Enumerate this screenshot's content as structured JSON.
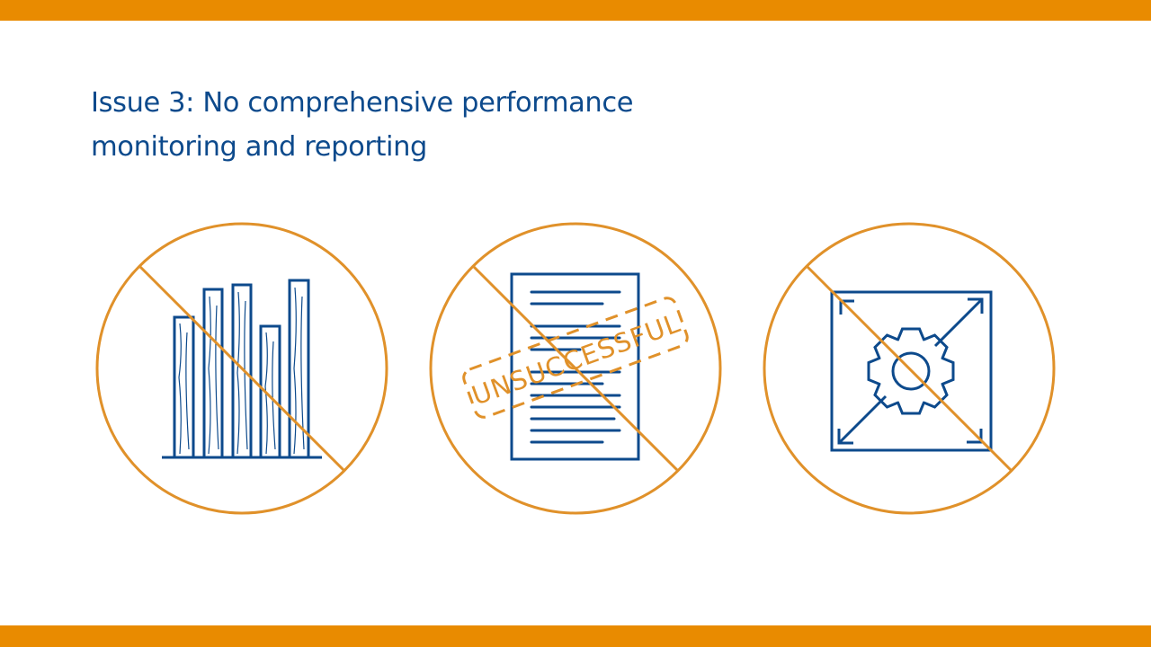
{
  "slide": {
    "title_line1": "Issue 3: No comprehensive performance",
    "title_line2": "monitoring and reporting"
  },
  "icons": [
    {
      "name": "bar-chart-prohibited-icon"
    },
    {
      "name": "document-prohibited-icon",
      "stamp_text": "UNSUCCESSFUL"
    },
    {
      "name": "gear-scale-prohibited-icon"
    }
  ],
  "colors": {
    "accent_bar": "#E98B00",
    "prohibit_stroke": "#E0912A",
    "icon_blue": "#0D4A8C",
    "title": "#0D4A8C"
  }
}
